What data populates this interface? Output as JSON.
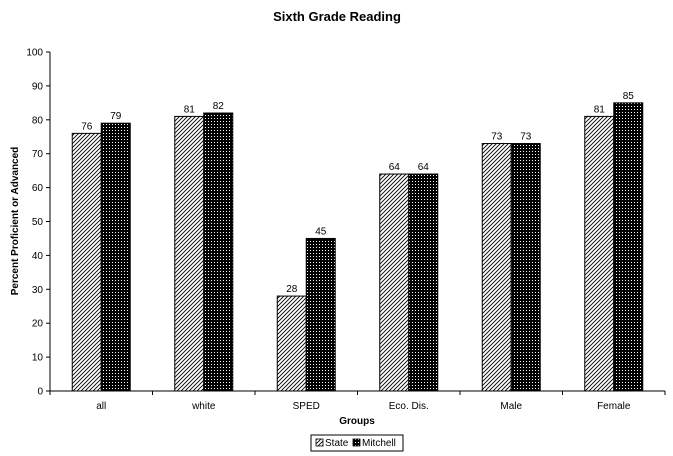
{
  "chart_data": {
    "type": "bar",
    "title": "Sixth Grade Reading",
    "xlabel": "Groups",
    "ylabel": "Percent Proficient or Advanced",
    "categories": [
      "all",
      "white",
      "SPED",
      "Eco. Dis.",
      "Male",
      "Female"
    ],
    "series": [
      {
        "name": "State",
        "values": [
          76,
          81,
          28,
          64,
          73,
          81
        ],
        "pattern": "diagonal-hatch"
      },
      {
        "name": "Mitchell",
        "values": [
          79,
          82,
          45,
          64,
          73,
          85
        ],
        "pattern": "dark-dots"
      }
    ],
    "ylim": [
      0,
      100
    ],
    "yticks": [
      0,
      10,
      20,
      30,
      40,
      50,
      60,
      70,
      80,
      90,
      100
    ],
    "grid": false,
    "legend_position": "bottom-center"
  }
}
